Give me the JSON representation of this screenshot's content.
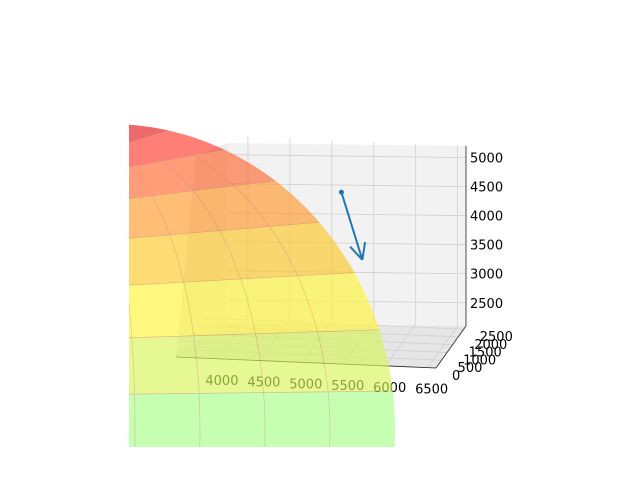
{
  "chart_data": {
    "type": "surface",
    "title": "",
    "xlabel": "",
    "ylabel": "",
    "zlabel": "",
    "grid": true,
    "x_ticks": [
      "4000",
      "4500",
      "5000",
      "5500",
      "6000",
      "6500"
    ],
    "y_ticks": [
      "0",
      "500",
      "1000",
      "1500",
      "2000",
      "2500"
    ],
    "z_ticks": [
      "2500",
      "3000",
      "3500",
      "4000",
      "4500",
      "5000"
    ],
    "xlim": [
      3500,
      6600
    ],
    "ylim": [
      0,
      2700
    ],
    "zlim": [
      2100,
      5200
    ],
    "surface": {
      "description": "semi-transparent sphere-like surface",
      "colormap": [
        "#ffffff00"
      ],
      "alpha": 0.65,
      "band_colors": [
        "#e41a1c",
        "#ff3b2e",
        "#ff6a33",
        "#ff9a2e",
        "#ffc82a",
        "#fff53a",
        "#d8f55a",
        "#a8ff88"
      ]
    },
    "vector": {
      "start": {
        "x": 5300,
        "y": 1300,
        "z": 4700
      },
      "end": {
        "x": 5550,
        "y": 1300,
        "z": 3550
      },
      "color": "#1f77b4"
    }
  }
}
